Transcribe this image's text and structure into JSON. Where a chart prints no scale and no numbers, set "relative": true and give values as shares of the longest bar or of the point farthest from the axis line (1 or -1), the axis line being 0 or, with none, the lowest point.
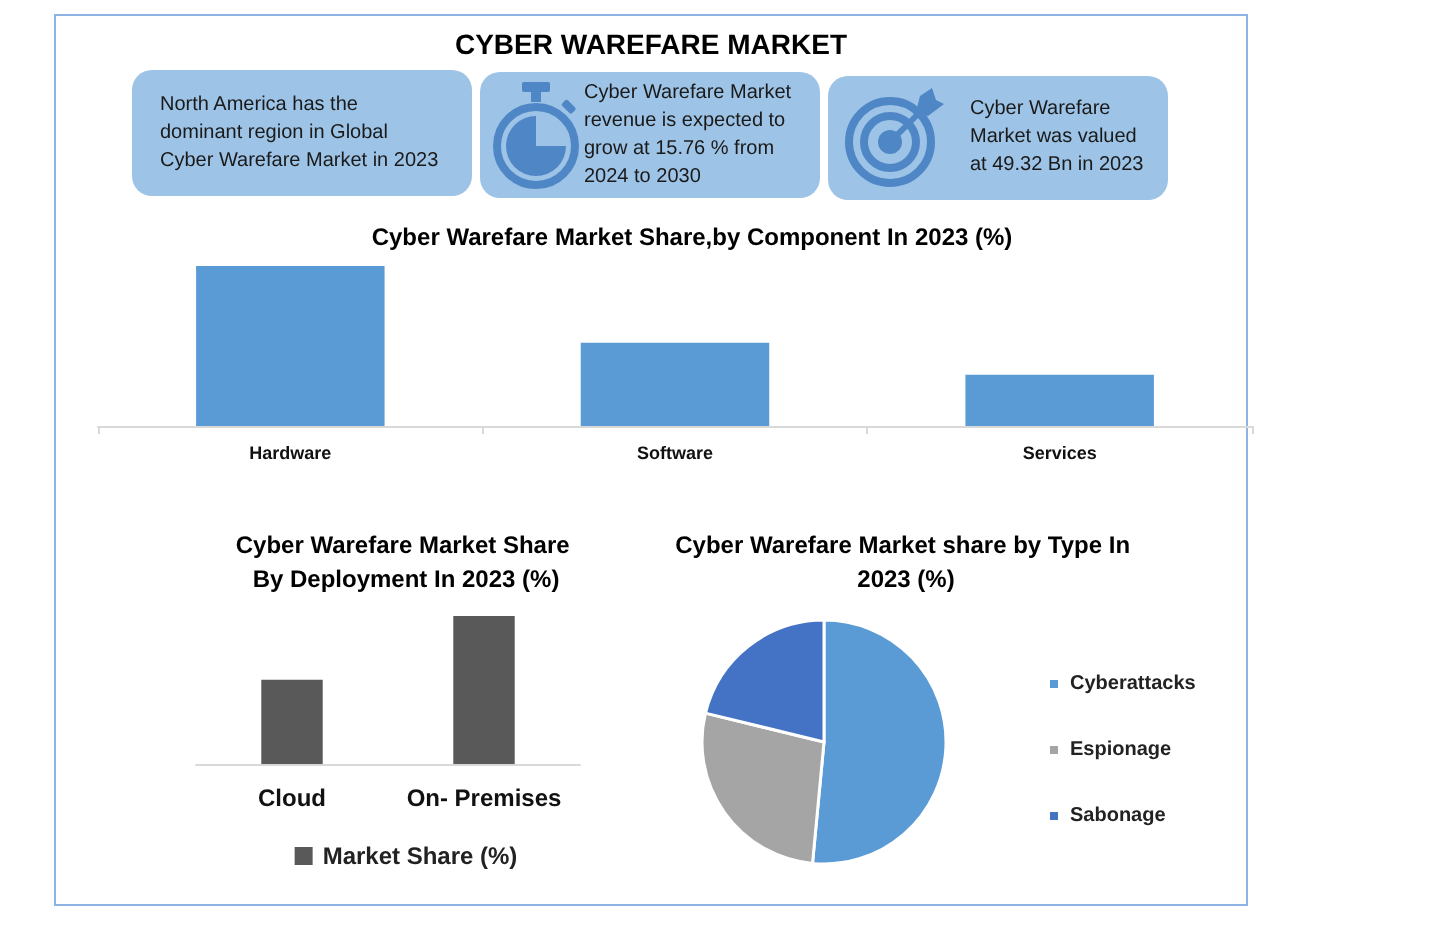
{
  "chart_data": [
    {
      "type": "other",
      "title": "CYBER WAREFARE MARKET",
      "annotations": [
        "North America has the dominant region in Global Cyber Warefare Market in 2023",
        "Cyber Warefare Market revenue is expected to grow at 15.76 % from 2024 to 2030",
        "Cyber Warefare Market was valued at 49.32 Bn in 2023"
      ]
    },
    {
      "type": "bar",
      "title": "Cyber Warefare Market Share,by Component In 2023 (%)",
      "categories": [
        "Hardware",
        "Software",
        "Services"
      ],
      "values": [
        1,
        0.52,
        0.32
      ],
      "color": "#5b9bd5",
      "relative": true
    },
    {
      "type": "bar",
      "title": "Cyber Warefare Market Share By Deployment In 2023 (%)",
      "categories": [
        "Cloud",
        "On- Premises"
      ],
      "series": [
        {
          "name": "Market Share (%)",
          "color": "#595959",
          "values": [
            0.57,
            1
          ]
        }
      ],
      "relative": true,
      "legend": "bottom"
    },
    {
      "type": "pie",
      "title": "Cyber Warefare Market share by Type In 2023 (%)",
      "categories": [
        "Cyberattacks",
        "Espionage",
        "Sabonage"
      ],
      "values": [
        51.5,
        27.3,
        21.2
      ],
      "colors": [
        "#5b9bd5",
        "#a5a5a5",
        "#4472c4"
      ],
      "legend": "right"
    }
  ]
}
